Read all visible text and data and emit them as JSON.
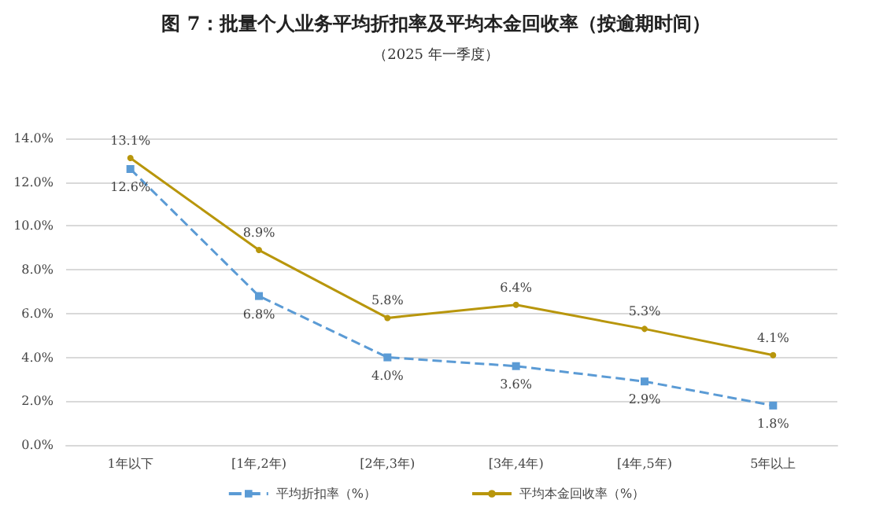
{
  "chart_data": {
    "type": "line",
    "title": "图 7：批量个人业务平均折扣率及平均本金回收率（按逾期时间）",
    "subtitle": "（2025 年一季度）",
    "categories": [
      "1年以下",
      "[1年,2年)",
      "[2年,3年)",
      "[3年,4年)",
      "[4年,5年)",
      "5年以上"
    ],
    "series": [
      {
        "name": "平均折扣率（%）",
        "color": "#5b9bd5",
        "values": [
          12.6,
          6.8,
          4.0,
          3.6,
          2.9,
          1.8
        ],
        "value_labels": [
          "12.6%",
          "6.8%",
          "4.0%",
          "3.6%",
          "2.9%",
          "1.8%"
        ],
        "marker": "square",
        "line_style": "dashed"
      },
      {
        "name": "平均本金回收率（%）",
        "color": "#b8960c",
        "values": [
          13.1,
          8.9,
          5.8,
          6.4,
          5.3,
          4.1
        ],
        "value_labels": [
          "13.1%",
          "8.9%",
          "5.8%",
          "6.4%",
          "5.3%",
          "4.1%"
        ],
        "marker": "circle",
        "line_style": "solid"
      }
    ],
    "ylim": [
      0,
      14
    ],
    "yticks": [
      {
        "value": 0,
        "label": "0.0%"
      },
      {
        "value": 2,
        "label": "2.0%"
      },
      {
        "value": 4,
        "label": "4.0%"
      },
      {
        "value": 6,
        "label": "6.0%"
      },
      {
        "value": 8,
        "label": "8.0%"
      },
      {
        "value": 10,
        "label": "10.0%"
      },
      {
        "value": 12,
        "label": "12.0%"
      },
      {
        "value": 14,
        "label": "14.0%"
      }
    ],
    "grid": "y",
    "legend": "bottom"
  }
}
